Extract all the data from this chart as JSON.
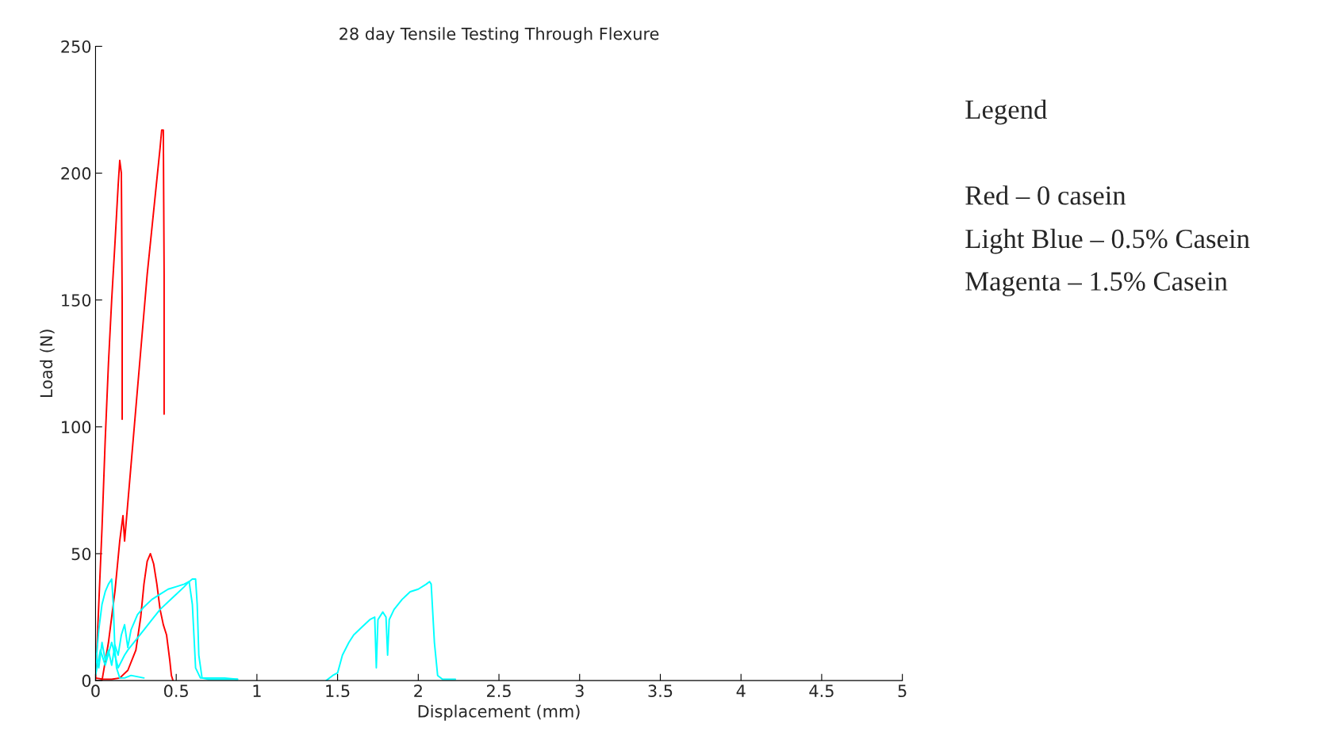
{
  "chart_data": {
    "type": "line",
    "title": "28 day Tensile Testing Through Flexure",
    "xlabel": "Displacement (mm)",
    "ylabel": "Load (N)",
    "xlim": [
      0,
      5
    ],
    "xticks": [
      0,
      0.5,
      1,
      1.5,
      2,
      2.5,
      3,
      3.5,
      4,
      4.5,
      5
    ],
    "ylim": [
      0,
      250
    ],
    "yticks": [
      0,
      50,
      100,
      150,
      200,
      250
    ],
    "grid": false,
    "legend": false,
    "line_style": "solid",
    "marker": "none",
    "annotations": [
      "Legend",
      "Red – 0 casein",
      "Light Blue – 0.5% Casein",
      "Magenta – 1.5% Casein"
    ],
    "series": [
      {
        "color": "#ff0000",
        "x": [
          0,
          0.02,
          0.04,
          0.06,
          0.08,
          0.1,
          0.12,
          0.14,
          0.15,
          0.16,
          0.165,
          0.165
        ],
        "values": [
          0,
          30,
          60,
          95,
          125,
          150,
          172,
          195,
          205,
          200,
          150,
          103
        ]
      },
      {
        "color": "#ff0000",
        "x": [
          0.04,
          0.08,
          0.12,
          0.15,
          0.17,
          0.18,
          0.2,
          0.24,
          0.28,
          0.32,
          0.36,
          0.4,
          0.41,
          0.42,
          0.425,
          0.425
        ],
        "values": [
          0,
          15,
          35,
          55,
          65,
          55,
          70,
          100,
          130,
          160,
          185,
          210,
          217,
          217,
          160,
          105
        ]
      },
      {
        "color": "#ff0000",
        "x": [
          0,
          0.05,
          0.1,
          0.15,
          0.2,
          0.25,
          0.28,
          0.3,
          0.32,
          0.34,
          0.36,
          0.38,
          0.4,
          0.42,
          0.44,
          0.46,
          0.47,
          0.48
        ],
        "values": [
          1,
          0.5,
          0.5,
          1,
          4,
          12,
          25,
          38,
          47,
          50,
          46,
          38,
          28,
          22,
          18,
          8,
          2,
          0
        ]
      },
      {
        "color": "#00ffff",
        "x": [
          0,
          0.02,
          0.04,
          0.06,
          0.08,
          0.1,
          0.11,
          0.12,
          0.13,
          0.15,
          0.18,
          0.22,
          0.3
        ],
        "values": [
          5,
          20,
          30,
          35,
          38,
          40,
          30,
          12,
          5,
          1,
          1,
          2,
          1
        ]
      },
      {
        "color": "#00ffff",
        "x": [
          0,
          0.02,
          0.04,
          0.06,
          0.08,
          0.1,
          0.12,
          0.14,
          0.16,
          0.18,
          0.2,
          0.22,
          0.26,
          0.3,
          0.35,
          0.4,
          0.45,
          0.5,
          0.55,
          0.58,
          0.6,
          0.62,
          0.65,
          0.7,
          0.8,
          0.88
        ],
        "values": [
          10,
          5,
          15,
          8,
          12,
          6,
          14,
          10,
          18,
          22,
          13,
          20,
          26,
          29,
          32,
          34,
          36,
          37,
          38,
          39,
          30,
          5,
          1,
          1,
          1,
          0.5
        ]
      },
      {
        "color": "#00ffff",
        "x": [
          0,
          0.03,
          0.06,
          0.1,
          0.14,
          0.18,
          0.2,
          0.25,
          0.3,
          0.35,
          0.4,
          0.45,
          0.5,
          0.55,
          0.58,
          0.6,
          0.62,
          0.63,
          0.64,
          0.66,
          0.7,
          0.8,
          0.88
        ],
        "values": [
          2,
          12,
          6,
          15,
          5,
          10,
          12,
          16,
          20,
          24,
          28,
          31,
          34,
          37,
          39,
          40,
          40,
          30,
          10,
          1,
          0.5,
          0.5,
          0.5
        ]
      },
      {
        "color": "#00ffff",
        "x": [
          1.43,
          1.47,
          1.5,
          1.53,
          1.57,
          1.6,
          1.65,
          1.7,
          1.73,
          1.74,
          1.75,
          1.78,
          1.8,
          1.81,
          1.82,
          1.85,
          1.9,
          1.95,
          2.0,
          2.05,
          2.07,
          2.08,
          2.1,
          2.12,
          2.15,
          2.23
        ],
        "values": [
          0,
          2,
          3,
          10,
          15,
          18,
          21,
          24,
          25,
          5,
          24,
          27,
          25,
          10,
          24,
          28,
          32,
          35,
          36,
          38,
          39,
          38,
          15,
          2,
          0.5,
          0.5
        ]
      }
    ]
  }
}
